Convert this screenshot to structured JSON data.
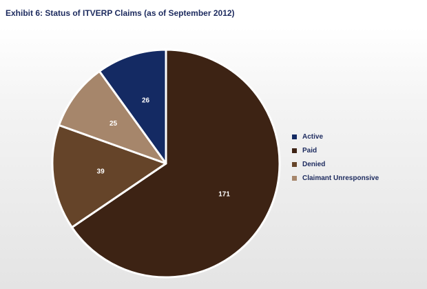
{
  "title": "Exhibit 6: Status of ITVERP Claims (as of September 2012)",
  "chart_data": {
    "type": "pie",
    "title": "Exhibit 6: Status of ITVERP Claims (as of September 2012)",
    "legend_position": "right",
    "start": "top",
    "direction": "clockwise",
    "slices": [
      {
        "label": "Paid",
        "value": 171,
        "color": "#3d2314"
      },
      {
        "label": "Denied",
        "value": 39,
        "color": "#654429"
      },
      {
        "label": "Claimant Unresponsive",
        "value": 25,
        "color": "#a6866b"
      },
      {
        "label": "Active",
        "value": 26,
        "color": "#142a63"
      }
    ],
    "legend": [
      {
        "label": "Active",
        "color": "#142a63"
      },
      {
        "label": "Paid",
        "color": "#3d2314"
      },
      {
        "label": "Denied",
        "color": "#654429"
      },
      {
        "label": "Claimant Unresponsive",
        "color": "#a6866b"
      }
    ]
  }
}
